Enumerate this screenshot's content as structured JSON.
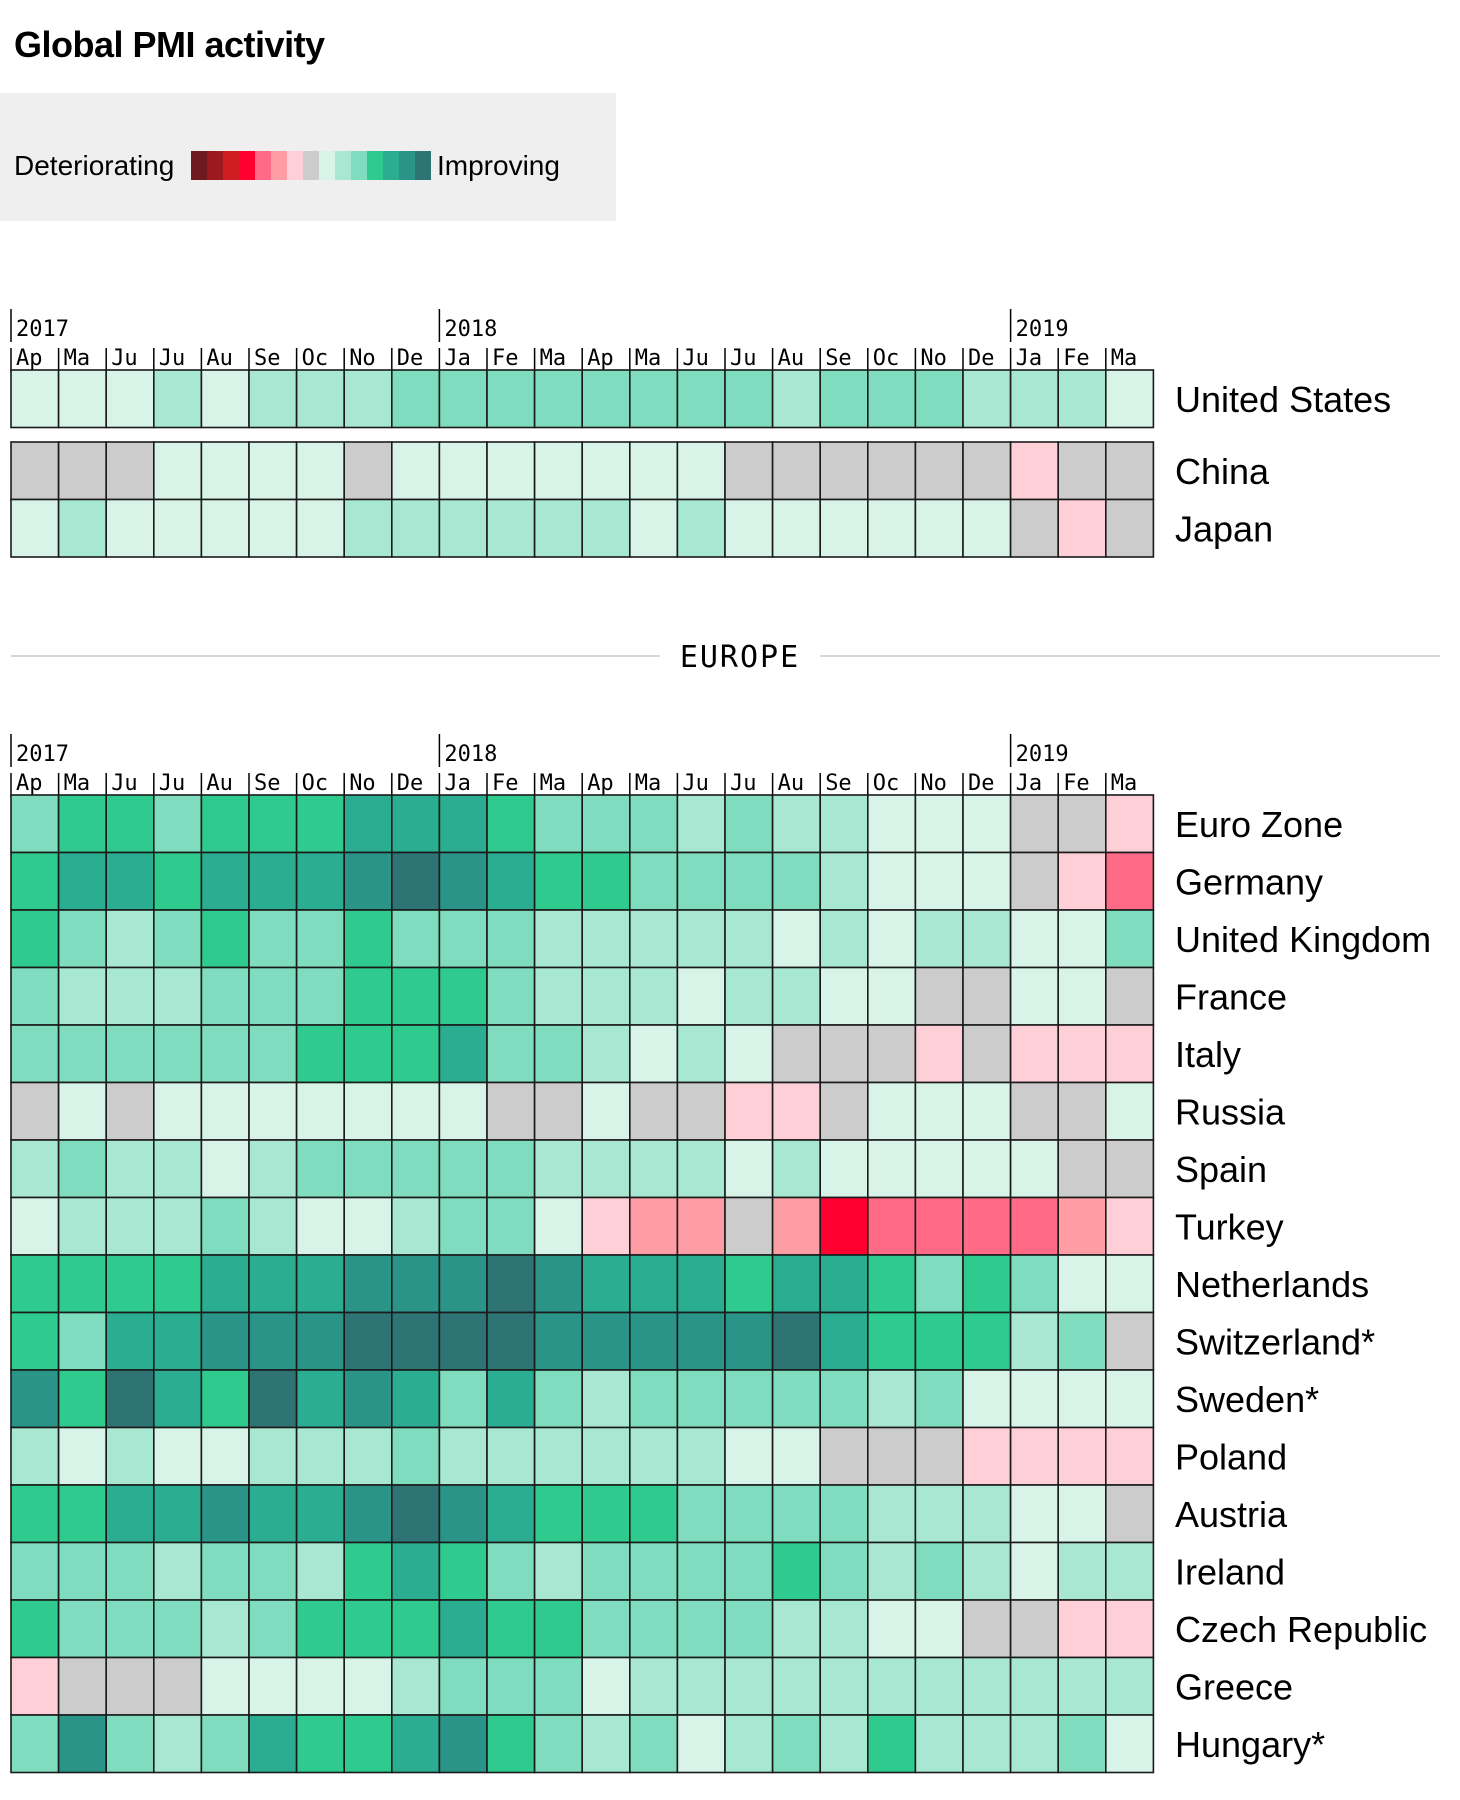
{
  "chart_data": {
    "type": "heatmap",
    "title": "Global PMI activity",
    "legend": {
      "left_label": "Deteriorating",
      "right_label": "Improving",
      "scale": [
        "#6e1a1e",
        "#9c1a1e",
        "#cf1d23",
        "#ff0031",
        "#ff6b86",
        "#ff9da4",
        "#ffcfd7",
        "#cccccc",
        "#d8f4e8",
        "#a8e8d2",
        "#80dcbe",
        "#2fcb8e",
        "#2aad90",
        "#2a9488",
        "#2f7474"
      ]
    },
    "colors": {
      "-4": "#ff0031",
      "-3": "#ff6b86",
      "-2": "#ff9da4",
      "-1": "#ffcfd7",
      "0": "#cccccc",
      "1": "#d8f4e8",
      "2": "#a8e8d2",
      "3": "#80dcbe",
      "4": "#2fcb8e",
      "5": "#2aad90",
      "6": "#2a9488",
      "7": "#2f7474"
    },
    "months": [
      "Ap",
      "Ma",
      "Ju",
      "Ju",
      "Au",
      "Se",
      "Oc",
      "No",
      "De",
      "Ja",
      "Fe",
      "Ma",
      "Ap",
      "Ma",
      "Ju",
      "Ju",
      "Au",
      "Se",
      "Oc",
      "No",
      "De",
      "Ja",
      "Fe",
      "Ma"
    ],
    "years": [
      {
        "label": "2017",
        "index": 0
      },
      {
        "label": "2018",
        "index": 9
      },
      {
        "label": "2019",
        "index": 21
      }
    ],
    "section_label": "EUROPE",
    "groups": [
      {
        "rows": [
          {
            "name": "United States",
            "values": [
              1,
              1,
              1,
              2,
              1,
              2,
              2,
              2,
              3,
              3,
              3,
              3,
              3,
              3,
              3,
              3,
              2,
              3,
              3,
              3,
              2,
              2,
              2,
              1
            ]
          }
        ]
      },
      {
        "rows": [
          {
            "name": "China",
            "values": [
              0,
              0,
              0,
              1,
              1,
              1,
              1,
              0,
              1,
              1,
              1,
              1,
              1,
              1,
              1,
              0,
              0,
              0,
              0,
              0,
              0,
              -1,
              0,
              0
            ]
          },
          {
            "name": "Japan",
            "values": [
              1,
              2,
              1,
              1,
              1,
              1,
              1,
              2,
              2,
              2,
              2,
              2,
              2,
              1,
              2,
              1,
              1,
              1,
              1,
              1,
              1,
              0,
              -1,
              0
            ]
          }
        ]
      },
      {
        "section": true,
        "rows": [
          {
            "name": "Euro Zone",
            "values": [
              3,
              4,
              4,
              3,
              4,
              4,
              4,
              5,
              5,
              5,
              4,
              3,
              3,
              3,
              2,
              3,
              2,
              2,
              1,
              1,
              1,
              0,
              0,
              -1
            ]
          },
          {
            "name": "Germany",
            "values": [
              4,
              5,
              5,
              4,
              5,
              5,
              5,
              6,
              7,
              6,
              5,
              4,
              4,
              3,
              3,
              3,
              3,
              2,
              1,
              1,
              1,
              0,
              -1,
              -3
            ]
          },
          {
            "name": "United Kingdom",
            "values": [
              4,
              3,
              2,
              3,
              4,
              3,
              3,
              4,
              3,
              3,
              3,
              2,
              2,
              2,
              2,
              2,
              1,
              2,
              1,
              2,
              2,
              1,
              1,
              3
            ]
          },
          {
            "name": "France",
            "values": [
              3,
              2,
              2,
              2,
              3,
              3,
              3,
              4,
              4,
              4,
              3,
              2,
              2,
              2,
              1,
              2,
              2,
              1,
              1,
              0,
              0,
              1,
              1,
              0
            ]
          },
          {
            "name": "Italy",
            "values": [
              3,
              3,
              3,
              3,
              3,
              3,
              4,
              4,
              4,
              5,
              3,
              3,
              2,
              1,
              2,
              1,
              0,
              0,
              0,
              -1,
              0,
              -1,
              -1,
              -1
            ]
          },
          {
            "name": "Russia",
            "values": [
              0,
              1,
              0,
              1,
              1,
              1,
              1,
              1,
              1,
              1,
              0,
              0,
              1,
              0,
              0,
              -1,
              -1,
              0,
              1,
              1,
              1,
              0,
              0,
              1
            ]
          },
          {
            "name": "Spain",
            "values": [
              2,
              3,
              2,
              2,
              1,
              2,
              3,
              3,
              3,
              3,
              3,
              2,
              2,
              2,
              2,
              1,
              2,
              1,
              1,
              1,
              1,
              1,
              0,
              0
            ]
          },
          {
            "name": "Turkey",
            "values": [
              1,
              2,
              2,
              2,
              3,
              2,
              1,
              1,
              2,
              3,
              3,
              1,
              -1,
              -2,
              -2,
              0,
              -2,
              -4,
              -3,
              -3,
              -3,
              -3,
              -2,
              -1
            ]
          },
          {
            "name": "Netherlands",
            "values": [
              4,
              4,
              4,
              4,
              5,
              5,
              5,
              6,
              6,
              6,
              7,
              6,
              5,
              5,
              5,
              4,
              5,
              5,
              4,
              3,
              4,
              3,
              1,
              1
            ]
          },
          {
            "name": "Switzerland*",
            "values": [
              4,
              3,
              5,
              5,
              6,
              6,
              6,
              7,
              7,
              7,
              7,
              6,
              6,
              6,
              6,
              6,
              7,
              5,
              4,
              4,
              4,
              2,
              3,
              0
            ]
          },
          {
            "name": "Sweden*",
            "values": [
              6,
              4,
              7,
              5,
              4,
              7,
              5,
              6,
              5,
              3,
              5,
              3,
              2,
              3,
              3,
              3,
              3,
              3,
              2,
              3,
              1,
              1,
              1,
              1
            ]
          },
          {
            "name": "Poland",
            "values": [
              2,
              1,
              2,
              1,
              1,
              2,
              2,
              2,
              3,
              2,
              2,
              2,
              2,
              2,
              2,
              1,
              1,
              0,
              0,
              0,
              -1,
              -1,
              -1,
              -1
            ]
          },
          {
            "name": "Austria",
            "values": [
              4,
              4,
              5,
              5,
              6,
              5,
              5,
              6,
              7,
              6,
              5,
              4,
              4,
              4,
              3,
              3,
              3,
              3,
              2,
              2,
              2,
              1,
              1,
              0
            ]
          },
          {
            "name": "Ireland",
            "values": [
              3,
              3,
              3,
              2,
              3,
              3,
              2,
              4,
              5,
              4,
              3,
              2,
              3,
              3,
              3,
              3,
              4,
              3,
              2,
              3,
              2,
              1,
              2,
              2
            ]
          },
          {
            "name": "Czech Republic",
            "values": [
              4,
              3,
              3,
              3,
              2,
              3,
              4,
              4,
              4,
              5,
              4,
              4,
              3,
              3,
              3,
              3,
              2,
              2,
              1,
              1,
              0,
              0,
              -1,
              -1
            ]
          },
          {
            "name": "Greece",
            "values": [
              -1,
              0,
              0,
              0,
              1,
              1,
              1,
              1,
              2,
              3,
              3,
              3,
              1,
              2,
              2,
              2,
              2,
              2,
              2,
              2,
              2,
              2,
              2,
              2
            ]
          },
          {
            "name": "Hungary*",
            "values": [
              3,
              6,
              3,
              2,
              3,
              5,
              4,
              4,
              5,
              6,
              4,
              3,
              2,
              3,
              1,
              2,
              3,
              2,
              4,
              2,
              2,
              2,
              3,
              1
            ]
          }
        ]
      }
    ]
  }
}
